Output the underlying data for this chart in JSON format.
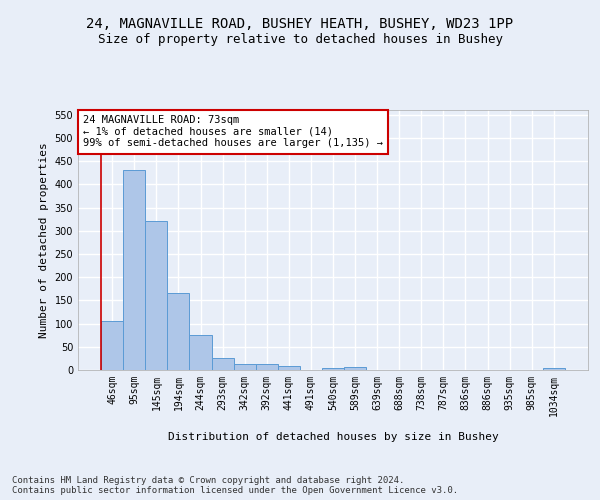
{
  "title_line1": "24, MAGNAVILLE ROAD, BUSHEY HEATH, BUSHEY, WD23 1PP",
  "title_line2": "Size of property relative to detached houses in Bushey",
  "xlabel": "Distribution of detached houses by size in Bushey",
  "ylabel": "Number of detached properties",
  "categories": [
    "46sqm",
    "95sqm",
    "145sqm",
    "194sqm",
    "244sqm",
    "293sqm",
    "342sqm",
    "392sqm",
    "441sqm",
    "491sqm",
    "540sqm",
    "589sqm",
    "639sqm",
    "688sqm",
    "738sqm",
    "787sqm",
    "836sqm",
    "886sqm",
    "935sqm",
    "985sqm",
    "1034sqm"
  ],
  "values": [
    105,
    430,
    320,
    165,
    75,
    25,
    12,
    12,
    9,
    0,
    5,
    6,
    0,
    0,
    0,
    0,
    0,
    0,
    0,
    0,
    5
  ],
  "bar_color": "#aec6e8",
  "bar_edge_color": "#5b9bd5",
  "background_color": "#e8eef8",
  "grid_color": "#ffffff",
  "annotation_text": "24 MAGNAVILLE ROAD: 73sqm\n← 1% of detached houses are smaller (14)\n99% of semi-detached houses are larger (1,135) →",
  "annotation_box_color": "#ffffff",
  "annotation_box_edge": "#cc0000",
  "vline_color": "#cc0000",
  "ylim": [
    0,
    560
  ],
  "yticks": [
    0,
    50,
    100,
    150,
    200,
    250,
    300,
    350,
    400,
    450,
    500,
    550
  ],
  "footnote": "Contains HM Land Registry data © Crown copyright and database right 2024.\nContains public sector information licensed under the Open Government Licence v3.0.",
  "title_fontsize": 10,
  "subtitle_fontsize": 9,
  "axis_label_fontsize": 8,
  "tick_fontsize": 7,
  "annotation_fontsize": 7.5,
  "footnote_fontsize": 6.5
}
